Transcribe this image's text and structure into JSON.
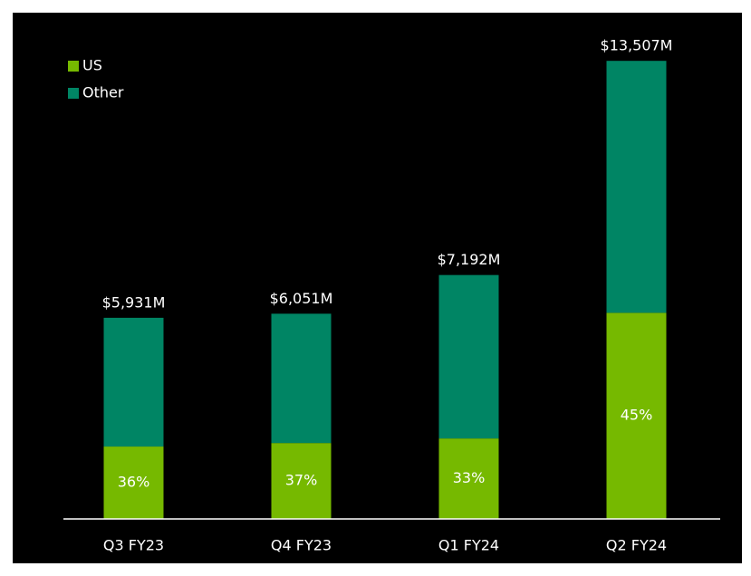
{
  "chart_data": {
    "type": "stacked_bar",
    "categories": [
      "Q3 FY23",
      "Q4 FY23",
      "Q1 FY24",
      "Q2 FY24"
    ],
    "series": [
      {
        "name": "US",
        "color": "#76b900",
        "values": [
          2135,
          2239,
          2373,
          6078
        ]
      },
      {
        "name": "Other",
        "color": "#008564",
        "values": [
          3796,
          3812,
          4819,
          7429
        ]
      }
    ],
    "totals": {
      "values": [
        5931,
        6051,
        7192,
        13507
      ],
      "value_labels": [
        "$5,931M",
        "$6,051M",
        "$7,192M",
        "$13,507M"
      ]
    },
    "shares": {
      "values": [
        36,
        37,
        33,
        45
      ],
      "value_labels": [
        "36%",
        "37%",
        "33%",
        "45%"
      ]
    },
    "ylim": [
      0,
      14500
    ],
    "legend": "top-left"
  }
}
